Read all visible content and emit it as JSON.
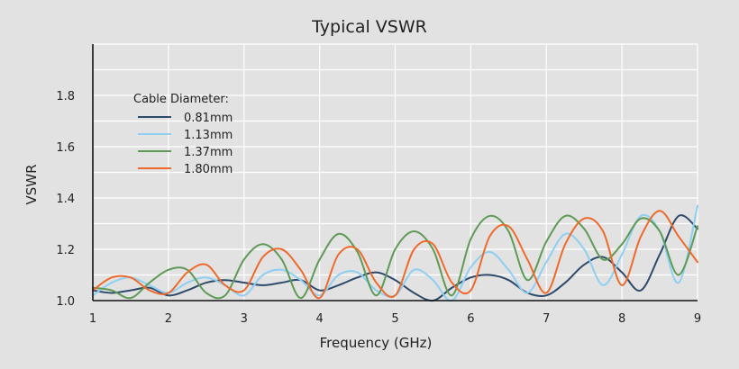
{
  "chart_data": {
    "type": "line",
    "title": "Typical VSWR",
    "xlabel": "Frequency (GHz)",
    "ylabel": "VSWR",
    "xlim": [
      1,
      9
    ],
    "ylim": [
      1.0,
      2.0
    ],
    "x_ticks": [
      "1",
      "2",
      "3",
      "4",
      "5",
      "6",
      "7",
      "8",
      "9"
    ],
    "y_ticks": [
      "1.0",
      "1.2",
      "1.4",
      "1.6",
      "1.8"
    ],
    "grid": true,
    "legend": {
      "title": "Cable Diameter:",
      "placement": "top-left"
    },
    "x": [
      1.0,
      1.25,
      1.5,
      1.75,
      2.0,
      2.25,
      2.5,
      2.75,
      3.0,
      3.25,
      3.5,
      3.75,
      4.0,
      4.25,
      4.5,
      4.75,
      5.0,
      5.25,
      5.5,
      5.75,
      6.0,
      6.25,
      6.5,
      6.75,
      7.0,
      7.25,
      7.5,
      7.75,
      8.0,
      8.25,
      8.5,
      8.75,
      9.0
    ],
    "series": [
      {
        "name": "0.81mm",
        "color": "#2e4a6b",
        "values": [
          1.04,
          1.03,
          1.04,
          1.05,
          1.02,
          1.04,
          1.07,
          1.08,
          1.07,
          1.06,
          1.07,
          1.08,
          1.04,
          1.06,
          1.09,
          1.11,
          1.08,
          1.03,
          1.0,
          1.05,
          1.09,
          1.1,
          1.08,
          1.03,
          1.02,
          1.07,
          1.14,
          1.17,
          1.11,
          1.04,
          1.18,
          1.33,
          1.28
        ]
      },
      {
        "name": "1.13mm",
        "color": "#8ecff2",
        "values": [
          1.02,
          1.07,
          1.09,
          1.06,
          1.03,
          1.07,
          1.09,
          1.06,
          1.02,
          1.1,
          1.12,
          1.08,
          1.02,
          1.1,
          1.11,
          1.04,
          1.02,
          1.12,
          1.08,
          1.0,
          1.13,
          1.19,
          1.12,
          1.03,
          1.15,
          1.26,
          1.2,
          1.06,
          1.18,
          1.33,
          1.27,
          1.07,
          1.37
        ]
      },
      {
        "name": "1.37mm",
        "color": "#5e9a55",
        "values": [
          1.05,
          1.04,
          1.01,
          1.07,
          1.12,
          1.12,
          1.03,
          1.02,
          1.16,
          1.22,
          1.16,
          1.01,
          1.16,
          1.26,
          1.19,
          1.02,
          1.2,
          1.27,
          1.2,
          1.02,
          1.24,
          1.33,
          1.27,
          1.08,
          1.23,
          1.33,
          1.28,
          1.16,
          1.22,
          1.32,
          1.27,
          1.1,
          1.29
        ]
      },
      {
        "name": "1.80mm",
        "color": "#ee6a2b",
        "values": [
          1.04,
          1.09,
          1.09,
          1.04,
          1.03,
          1.11,
          1.14,
          1.06,
          1.04,
          1.17,
          1.2,
          1.12,
          1.01,
          1.18,
          1.2,
          1.07,
          1.02,
          1.2,
          1.22,
          1.07,
          1.04,
          1.25,
          1.29,
          1.16,
          1.03,
          1.22,
          1.32,
          1.27,
          1.06,
          1.25,
          1.35,
          1.25,
          1.15
        ]
      }
    ]
  }
}
